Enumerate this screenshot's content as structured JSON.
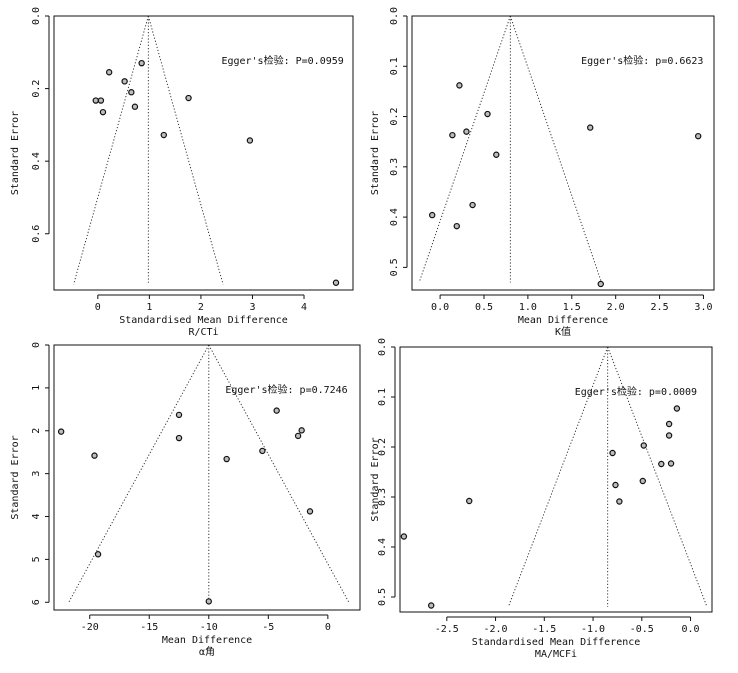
{
  "chart_data": [
    {
      "type": "scatter",
      "subtype": "funnel",
      "xlabel": "Standardised Mean Difference",
      "sublabel": "R/CTi",
      "ylabel": "Standard Error",
      "annotation": "Egger's检验: P=0.0959",
      "xlim": [
        -0.85,
        4.95
      ],
      "ylim": [
        0.0,
        0.755
      ],
      "xticks": [
        0,
        1,
        2,
        3,
        4
      ],
      "xtick_labels": [
        "0",
        "1",
        "2",
        "3",
        "4"
      ],
      "yticks": [
        0.0,
        0.2,
        0.4,
        0.6
      ],
      "ytick_labels": [
        "0.0",
        "0.2",
        "0.4",
        "0.6"
      ],
      "center": 0.98,
      "funnel_bottom": 0.74,
      "points": [
        {
          "x": 0.22,
          "y": 0.155
        },
        {
          "x": 0.85,
          "y": 0.13
        },
        {
          "x": 0.52,
          "y": 0.18
        },
        {
          "x": 0.65,
          "y": 0.21
        },
        {
          "x": -0.04,
          "y": 0.233
        },
        {
          "x": 0.06,
          "y": 0.233
        },
        {
          "x": 0.1,
          "y": 0.265
        },
        {
          "x": 0.72,
          "y": 0.25
        },
        {
          "x": 1.76,
          "y": 0.226
        },
        {
          "x": 1.28,
          "y": 0.328
        },
        {
          "x": 2.95,
          "y": 0.343
        },
        {
          "x": 4.62,
          "y": 0.735
        }
      ]
    },
    {
      "type": "scatter",
      "subtype": "funnel",
      "xlabel": "Mean Difference",
      "sublabel": "K值",
      "ylabel": "Standard Error",
      "annotation": "Egger's检验: p=0.6623",
      "xlim": [
        -0.32,
        3.12
      ],
      "ylim": [
        0.0,
        0.545
      ],
      "xticks": [
        0.0,
        0.5,
        1.0,
        1.5,
        2.0,
        2.5,
        3.0
      ],
      "xtick_labels": [
        "0.0",
        "0.5",
        "1.0",
        "1.5",
        "2.0",
        "2.5",
        "3.0"
      ],
      "yticks": [
        0.0,
        0.1,
        0.2,
        0.3,
        0.4,
        0.5
      ],
      "ytick_labels": [
        "0.0",
        "0.1",
        "0.2",
        "0.3",
        "0.4",
        "0.5"
      ],
      "center": 0.8,
      "funnel_bottom": 0.53,
      "points": [
        {
          "x": 0.22,
          "y": 0.138
        },
        {
          "x": 0.54,
          "y": 0.195
        },
        {
          "x": 0.14,
          "y": 0.237
        },
        {
          "x": 0.3,
          "y": 0.23
        },
        {
          "x": 1.71,
          "y": 0.222
        },
        {
          "x": 2.94,
          "y": 0.239
        },
        {
          "x": 0.64,
          "y": 0.276
        },
        {
          "x": 0.37,
          "y": 0.376
        },
        {
          "x": -0.09,
          "y": 0.396
        },
        {
          "x": 0.19,
          "y": 0.418
        },
        {
          "x": 1.83,
          "y": 0.533
        }
      ]
    },
    {
      "type": "scatter",
      "subtype": "funnel",
      "xlabel": "Mean Difference",
      "sublabel": "α角",
      "ylabel": "Standard Error",
      "annotation": "Egger's检验: p=0.7246",
      "xlim": [
        -23.0,
        2.7
      ],
      "ylim": [
        0.0,
        6.18
      ],
      "xticks": [
        -20,
        -15,
        -10,
        -5,
        0
      ],
      "xtick_labels": [
        "-20",
        "-15",
        "-10",
        "-5",
        "0"
      ],
      "yticks": [
        0,
        1,
        2,
        3,
        4,
        5,
        6
      ],
      "ytick_labels": [
        "0",
        "1",
        "2",
        "3",
        "4",
        "5",
        "6"
      ],
      "center": -10.0,
      "funnel_bottom": 6.0,
      "points": [
        {
          "x": -22.4,
          "y": 2.02
        },
        {
          "x": -19.6,
          "y": 2.58
        },
        {
          "x": -19.3,
          "y": 4.88
        },
        {
          "x": -12.5,
          "y": 1.63
        },
        {
          "x": -12.5,
          "y": 2.17
        },
        {
          "x": -8.5,
          "y": 2.66
        },
        {
          "x": -5.5,
          "y": 2.47
        },
        {
          "x": -4.3,
          "y": 1.53
        },
        {
          "x": -2.2,
          "y": 1.99
        },
        {
          "x": -2.5,
          "y": 2.12
        },
        {
          "x": -1.5,
          "y": 3.88
        },
        {
          "x": -10.0,
          "y": 5.98
        }
      ]
    },
    {
      "type": "scatter",
      "subtype": "funnel",
      "xlabel": "Standardised Mean Difference",
      "sublabel": "MA/MCFi",
      "ylabel": "Standard Error",
      "annotation": "Egger's检验: p=0.0009",
      "xlim": [
        -2.98,
        0.22
      ],
      "ylim": [
        0.0,
        0.53
      ],
      "xticks": [
        -2.5,
        -2.0,
        -1.5,
        -1.0,
        -0.5,
        0.0
      ],
      "xtick_labels": [
        "-2.5",
        "-2.0",
        "-1.5",
        "-1.0",
        "-0.5",
        "0.0"
      ],
      "yticks": [
        0.0,
        0.1,
        0.2,
        0.3,
        0.4,
        0.5
      ],
      "ytick_labels": [
        "0.0",
        "0.1",
        "0.2",
        "0.3",
        "0.4",
        "0.5"
      ],
      "center": -0.85,
      "funnel_bottom": 0.52,
      "points": [
        {
          "x": -0.14,
          "y": 0.123
        },
        {
          "x": -0.22,
          "y": 0.154
        },
        {
          "x": -0.22,
          "y": 0.177
        },
        {
          "x": -0.8,
          "y": 0.212
        },
        {
          "x": -0.3,
          "y": 0.234
        },
        {
          "x": -0.2,
          "y": 0.233
        },
        {
          "x": -0.48,
          "y": 0.197
        },
        {
          "x": -0.49,
          "y": 0.268
        },
        {
          "x": -0.77,
          "y": 0.276
        },
        {
          "x": -0.73,
          "y": 0.309
        },
        {
          "x": -2.27,
          "y": 0.308
        },
        {
          "x": -2.94,
          "y": 0.379
        },
        {
          "x": -2.66,
          "y": 0.517
        }
      ]
    }
  ]
}
